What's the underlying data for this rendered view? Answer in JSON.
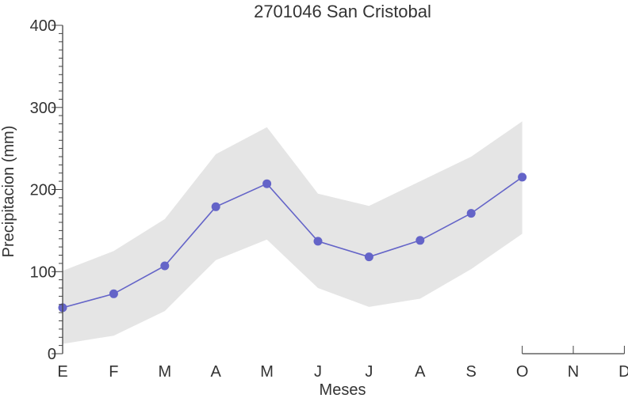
{
  "chart_data": {
    "type": "line",
    "title": "2701046 San Cristobal",
    "xlabel": "Meses",
    "ylabel": "Precipitacion (mm)",
    "categories": [
      "E",
      "F",
      "M",
      "A",
      "M",
      "J",
      "J",
      "A",
      "S",
      "O",
      "N",
      "D"
    ],
    "ylim": [
      0,
      400
    ],
    "yticks": [
      0,
      100,
      200,
      300,
      400
    ],
    "series": [
      {
        "values": [
          56,
          73,
          107,
          179,
          207,
          137,
          118,
          138,
          171,
          215,
          null,
          null
        ],
        "color": "#6464c8"
      }
    ],
    "band": {
      "upper": [
        101,
        125,
        164,
        243,
        276,
        195,
        180,
        210,
        240,
        283,
        null,
        null
      ],
      "lower": [
        12,
        22,
        52,
        114,
        139,
        80,
        57,
        67,
        103,
        146,
        null,
        null
      ],
      "color": "#e5e5e5"
    },
    "grid": false
  }
}
